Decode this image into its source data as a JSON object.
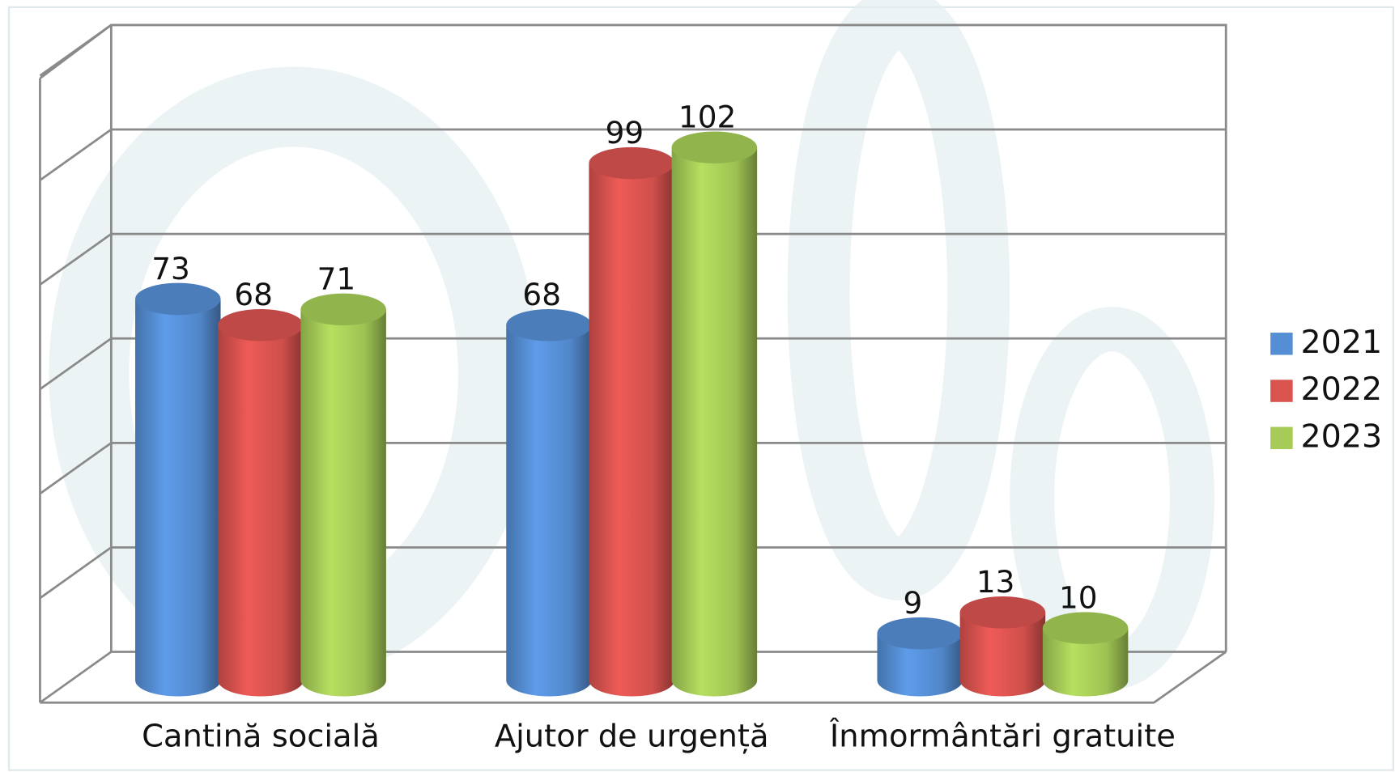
{
  "chart_data": {
    "type": "bar3d",
    "categories": [
      "Cantină socială",
      "Ajutor de urgență",
      "Înmormântări gratuite"
    ],
    "series": [
      {
        "name": "2021",
        "color": "#558ed5",
        "values": [
          73,
          68,
          9
        ]
      },
      {
        "name": "2022",
        "color": "#d9534f",
        "values": [
          68,
          99,
          13
        ]
      },
      {
        "name": "2023",
        "color": "#a6cc57",
        "values": [
          71,
          102,
          10
        ]
      }
    ],
    "ylim": [
      0,
      120
    ],
    "yticks": [
      0,
      20,
      40,
      60,
      80,
      100,
      120
    ],
    "grid": true,
    "legend": "right"
  }
}
